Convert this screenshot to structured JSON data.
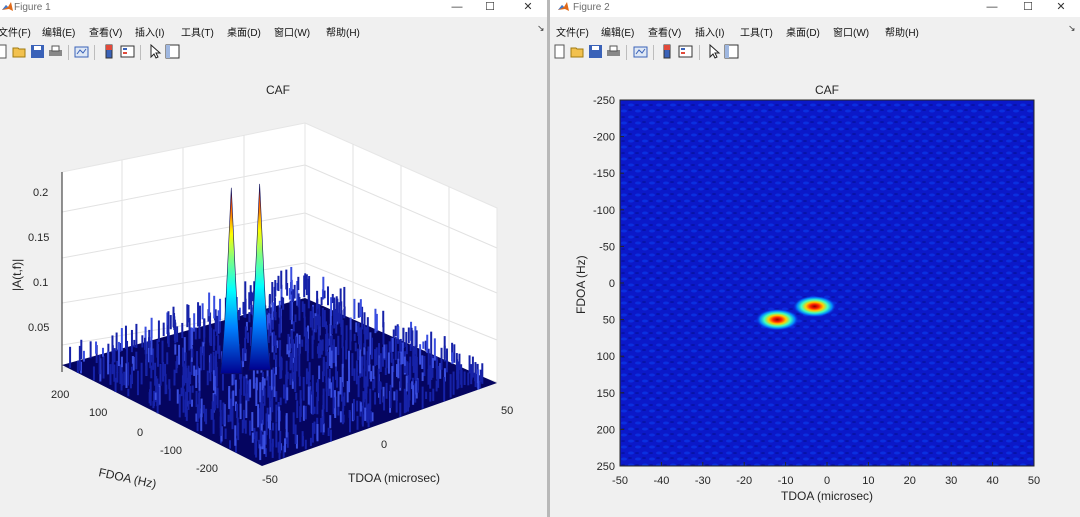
{
  "window1": {
    "title": "Figure 1",
    "menu": [
      "文件(F)",
      "编辑(E)",
      "查看(V)",
      "插入(I)",
      "工具(T)",
      "桌面(D)",
      "窗口(W)",
      "帮助(H)"
    ],
    "plot": {
      "title": "CAF",
      "zlabel": "|A(t,f)|",
      "ylabel": "FDOA (Hz)",
      "xlabel": "TDOA (microsec)",
      "zticks": [
        "0.2",
        "0.15",
        "0.1",
        "0.05"
      ],
      "yticks": [
        "200",
        "100",
        "0",
        "-100",
        "-200"
      ],
      "xticks": [
        "50",
        "0",
        "-50"
      ]
    }
  },
  "window2": {
    "title": "Figure 2",
    "menu": [
      "文件(F)",
      "编辑(E)",
      "查看(V)",
      "插入(I)",
      "工具(T)",
      "桌面(D)",
      "窗口(W)",
      "帮助(H)"
    ],
    "plot": {
      "title": "CAF",
      "ylabel": "FDOA (Hz)",
      "xlabel": "TDOA (microsec)",
      "yticks": [
        "-250",
        "-200",
        "-150",
        "-100",
        "-50",
        "0",
        "50",
        "100",
        "150",
        "200",
        "250"
      ],
      "xticks": [
        "-50",
        "-40",
        "-30",
        "-20",
        "-10",
        "0",
        "10",
        "20",
        "30",
        "40",
        "50"
      ]
    }
  },
  "controls": {
    "minimize": "—",
    "maximize": "☐",
    "close": "✕",
    "menu_arrow": "↘"
  },
  "chart_data": [
    {
      "type": "surface",
      "title": "CAF",
      "xlabel": "TDOA (microsec)",
      "ylabel": "FDOA (Hz)",
      "zlabel": "|A(t,f)|",
      "xlim": [
        -50,
        50
      ],
      "ylim": [
        -250,
        250
      ],
      "zlim": [
        0,
        0.22
      ],
      "peaks": [
        {
          "tdoa": -12,
          "fdoa": 50,
          "value": 0.21
        },
        {
          "tdoa": -3,
          "fdoa": 32,
          "value": 0.21
        }
      ],
      "noise_floor": 0.02,
      "colormap": "jet"
    },
    {
      "type": "heatmap",
      "title": "CAF",
      "xlabel": "TDOA (microsec)",
      "ylabel": "FDOA (Hz)",
      "xlim": [
        -50,
        50
      ],
      "ylim": [
        -250,
        250
      ],
      "y_reversed": true,
      "peaks": [
        {
          "tdoa": -12,
          "fdoa": 50
        },
        {
          "tdoa": -3,
          "fdoa": 32
        }
      ],
      "colormap": "jet"
    }
  ]
}
